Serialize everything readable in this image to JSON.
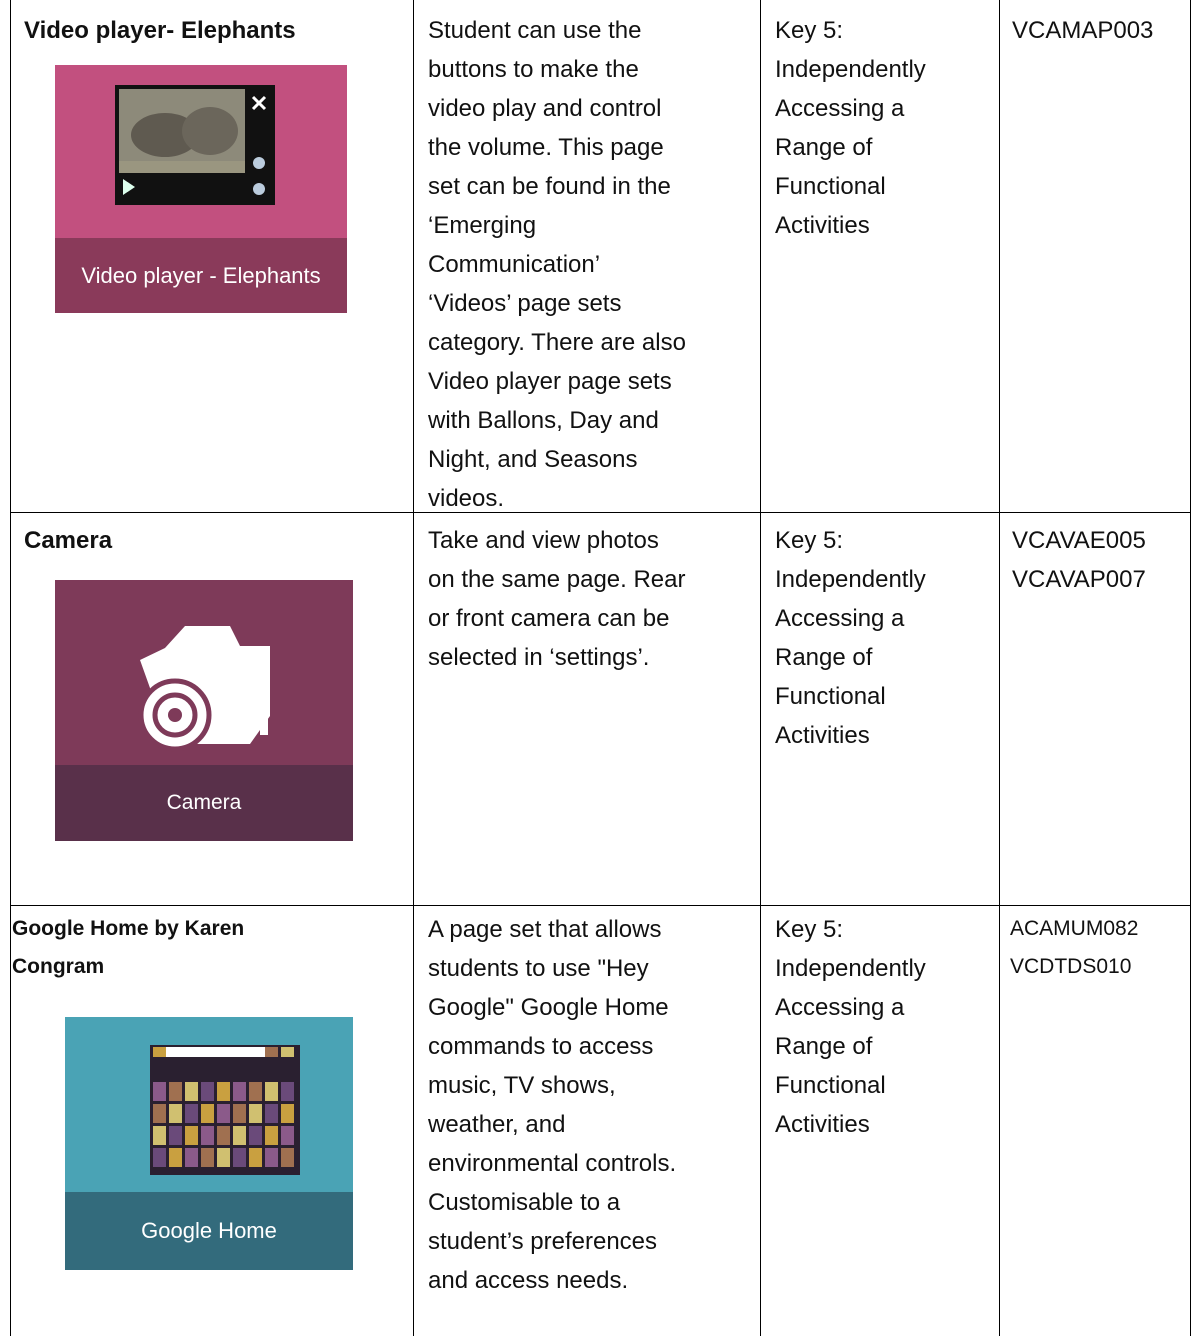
{
  "table": {
    "rows": [
      {
        "title": [
          "Video player- Elephants"
        ],
        "image_caption": "Video player - Elephants",
        "description": [
          "Student can use the",
          "buttons to make the",
          "video play and control",
          "the volume. This page",
          "set can be found in the",
          "‘Emerging",
          "Communication’",
          "‘Videos’ page sets",
          "category. There are also",
          "Video player page sets",
          "with Ballons, Day and",
          "Night, and Seasons",
          "videos."
        ],
        "key": [
          "Key 5:",
          "Independently",
          "Accessing a",
          "Range of",
          "Functional",
          "Activities"
        ],
        "codes": [
          "VCAMAP003"
        ]
      },
      {
        "title": [
          "Camera"
        ],
        "image_caption": "Camera",
        "description": [
          "Take and view photos",
          "on the same page. Rear",
          "or front camera can be",
          "selected in ‘settings’."
        ],
        "key": [
          "Key 5:",
          "Independently",
          "Accessing a",
          "Range of",
          "Functional",
          "Activities"
        ],
        "codes": [
          "VCAVAE005",
          "VCAVAP007"
        ]
      },
      {
        "title": [
          "Google Home by Karen",
          "Congram"
        ],
        "image_caption": "Google Home",
        "description": [
          "A page set that allows",
          "students to use \"Hey",
          "Google\" Google Home",
          "commands to access",
          "music, TV shows,",
          "weather, and",
          "environmental controls.",
          "Customisable to a",
          "student’s preferences",
          "and access needs."
        ],
        "key": [
          "Key 5:",
          "Independently",
          "Accessing a",
          "Range of",
          "Functional",
          "Activities"
        ],
        "codes": [
          "ACAMUM082",
          "VCDTDS010"
        ]
      }
    ]
  }
}
